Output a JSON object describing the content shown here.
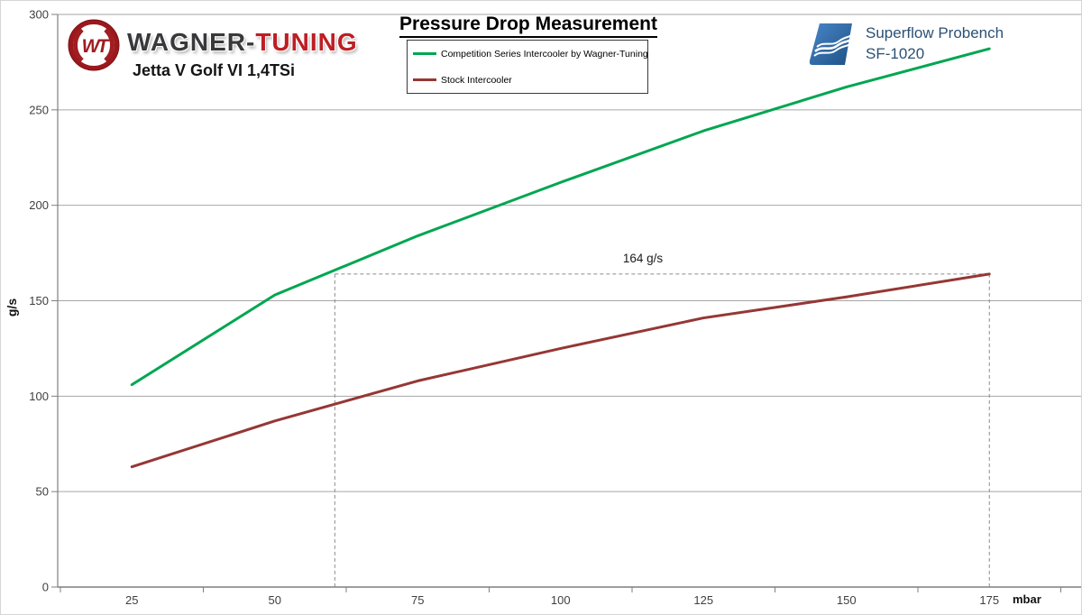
{
  "title": "Pressure Drop Measurement",
  "brand": {
    "monogram": "WT",
    "wagner": "WAGNER",
    "hyphen": "-",
    "tuning": "TUNING",
    "model": "Jetta V Golf VI 1,4TSi"
  },
  "bench": {
    "line1": "Superflow Probench",
    "line2": "SF-1020"
  },
  "colors": {
    "competition_green": "#00A651",
    "stock_red": "#953735",
    "wagner_red": "#A01D21",
    "brand_dark": "#39393B",
    "brand_red": "#BE1E24",
    "superflow_blue": "#2A5175",
    "grid_gray": "#A6A6A6",
    "axis_gray": "#7F7F7F"
  },
  "chart_data": {
    "type": "line",
    "title": "Pressure Drop Measurement",
    "xlabel": "mbar",
    "ylabel": "g/s",
    "x": [
      25,
      50,
      75,
      100,
      125,
      150,
      175
    ],
    "ylim": [
      0,
      300
    ],
    "ytick_step": 50,
    "grid": "horizontal",
    "legend_position": "top-center",
    "series": [
      {
        "name": "Competition Series Intercooler by Wagner-Tuning",
        "color": "#00A651",
        "values": [
          106,
          153,
          184,
          212,
          239,
          262,
          282
        ]
      },
      {
        "name": "Stock Intercooler",
        "color": "#953735",
        "values": [
          63,
          87,
          108,
          125,
          141,
          152,
          164
        ]
      }
    ],
    "annotation": {
      "label": "164 g/s",
      "value": 164,
      "from_mbar": 60.5,
      "to_mbar": 175,
      "label_mbar": 114.4
    }
  }
}
